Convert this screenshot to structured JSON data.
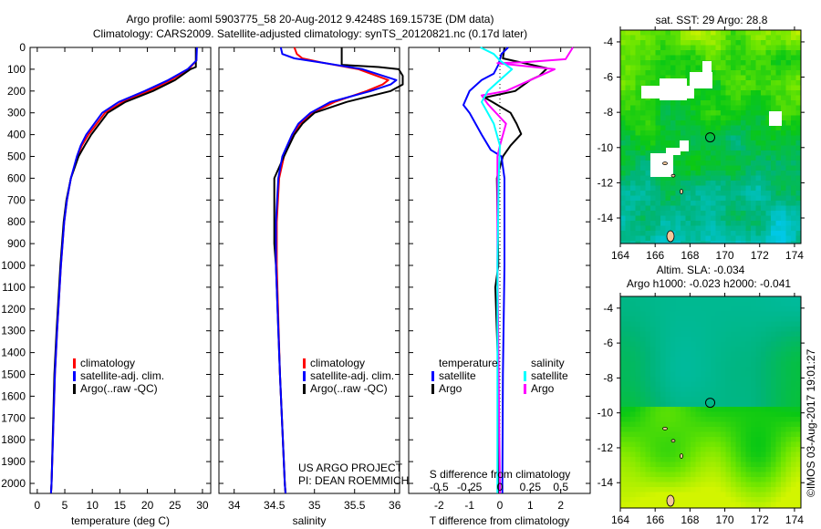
{
  "title_line1": "Argo profile: aoml 5903775_58 20-Aug-2012 9.4248S 169.1573E (DM data)",
  "title_line2": "Climatology: CARS2009. Satellite-adjusted climatology: synTS_20120821.nc (0.17d later)",
  "credit": "©IMOS 03-Aug-2017 19:01:27",
  "project_line1": "US ARGO PROJECT",
  "project_line2": "PI: DEAN ROEMMICH",
  "colors": {
    "climatology": "#ff0000",
    "satellite": "#0000ff",
    "argo": "#000000",
    "sal_satellite": "#00ffff",
    "sal_argo": "#ff00ff"
  },
  "chart_data": [
    {
      "type": "line",
      "title": "",
      "xlabel": "temperature (deg C)",
      "ylabel": "",
      "xlim": [
        -1.3,
        31.5
      ],
      "ylim": [
        2045,
        0
      ],
      "xticks": [
        "0",
        "5",
        "10",
        "15",
        "20",
        "25",
        "30"
      ],
      "yticks": [
        "0",
        "100",
        "200",
        "300",
        "400",
        "500",
        "600",
        "700",
        "800",
        "900",
        "1000",
        "1100",
        "1200",
        "1300",
        "1400",
        "1500",
        "1600",
        "1700",
        "1800",
        "1900",
        "2000"
      ],
      "legend": [
        "climatology",
        "satellite-adj. clim.",
        "Argo(..raw -QC)"
      ],
      "series": [
        {
          "name": "climatology",
          "color": "#ff0000",
          "depth": [
            0,
            60,
            100,
            150,
            200,
            250,
            300,
            400,
            450,
            500,
            600,
            700,
            800,
            1000,
            1300,
            1500,
            2000,
            2045
          ],
          "values": [
            28.9,
            28.9,
            27.5,
            24.3,
            20.2,
            15.5,
            12.3,
            9.3,
            8.1,
            7.3,
            6.1,
            5.4,
            4.9,
            4.3,
            3.6,
            3.2,
            2.6,
            2.5
          ]
        },
        {
          "name": "satellite-adj. clim.",
          "color": "#0000ff",
          "depth": [
            0,
            60,
            100,
            150,
            200,
            250,
            300,
            400,
            450,
            500,
            600,
            700,
            800,
            1000,
            1300,
            1500,
            2000,
            2045
          ],
          "values": [
            29.0,
            28.9,
            27.3,
            23.8,
            19.5,
            14.8,
            11.8,
            8.9,
            7.9,
            7.2,
            6.1,
            5.4,
            4.9,
            4.3,
            3.6,
            3.2,
            2.6,
            2.5
          ]
        },
        {
          "name": "Argo(..raw -QC)",
          "color": "#000000",
          "depth": [
            0,
            90,
            100,
            150,
            200,
            250,
            300,
            400,
            450,
            500,
            600,
            700,
            800,
            1000,
            1300,
            1500,
            2000,
            2045
          ],
          "values": [
            28.8,
            28.8,
            27.8,
            25.0,
            21.0,
            16.0,
            12.8,
            9.8,
            8.6,
            7.5,
            6.1,
            5.3,
            4.8,
            4.2,
            3.5,
            3.1,
            2.6,
            2.5
          ]
        }
      ]
    },
    {
      "type": "line",
      "xlabel": "salinity",
      "xlim": [
        33.81,
        36.06
      ],
      "ylim": [
        2045,
        0
      ],
      "xticks": [
        "34",
        "34.5",
        "35",
        "35.5",
        "36"
      ],
      "legend": [
        "climatology",
        "satellite-adj. clim.",
        "Argo(..raw -QC)"
      ],
      "series": [
        {
          "name": "climatology",
          "color": "#ff0000",
          "depth": [
            0,
            30,
            50,
            70,
            100,
            150,
            170,
            200,
            250,
            300,
            350,
            400,
            500,
            600,
            800,
            1000,
            1500,
            2000,
            2045
          ],
          "values": [
            34.75,
            34.78,
            34.85,
            35.1,
            35.55,
            35.92,
            35.85,
            35.65,
            35.25,
            34.97,
            34.82,
            34.73,
            34.62,
            34.56,
            34.53,
            34.53,
            34.57,
            34.63,
            34.64
          ]
        },
        {
          "name": "satellite-adj. clim.",
          "color": "#0000ff",
          "depth": [
            0,
            30,
            50,
            70,
            100,
            150,
            170,
            200,
            250,
            300,
            350,
            400,
            500,
            600,
            800,
            1000,
            1500,
            2000,
            2045
          ],
          "values": [
            34.58,
            34.6,
            34.75,
            35.1,
            35.6,
            36.02,
            35.95,
            35.7,
            35.2,
            34.95,
            34.8,
            34.72,
            34.6,
            34.55,
            34.52,
            34.52,
            34.57,
            34.63,
            34.64
          ]
        },
        {
          "name": "Argo(..raw -QC)",
          "color": "#000000",
          "depth": [
            0,
            80,
            90,
            100,
            130,
            170,
            200,
            250,
            300,
            350,
            400,
            500,
            600,
            900,
            1000,
            1500,
            2000,
            2045
          ],
          "values": [
            35.34,
            35.34,
            35.8,
            36.05,
            36.1,
            36.1,
            35.95,
            35.4,
            35.0,
            34.85,
            34.75,
            34.62,
            34.5,
            34.5,
            34.52,
            34.57,
            34.63,
            34.64
          ]
        }
      ]
    },
    {
      "type": "line",
      "xlabel": "T difference from climatology",
      "xlabel2": "S difference from climatology",
      "xlim": [
        -3,
        2.97
      ],
      "xlim_s": [
        -0.75,
        0.7425
      ],
      "ylim": [
        2045,
        0
      ],
      "xticks": [
        "-2",
        "-1",
        "0",
        "1",
        "2"
      ],
      "xticks_s": [
        "-0.5",
        "-0.25",
        "0",
        "0.25",
        "0.5"
      ],
      "legend_temperature": {
        "title": "temperature",
        "items": [
          "satellite",
          "Argo"
        ]
      },
      "legend_salinity": {
        "title": "salinity",
        "items": [
          "satellite",
          "Argo"
        ]
      },
      "series": [
        {
          "name": "temperature satellite",
          "color": "#0000ff",
          "scale": "T",
          "depth": [
            0,
            30,
            80,
            120,
            150,
            200,
            264,
            300,
            400,
            470,
            500,
            600,
            1000,
            1500,
            2000,
            2045
          ],
          "values": [
            0.27,
            0.05,
            -0.05,
            -0.2,
            -0.6,
            -1.0,
            -1.2,
            -1.0,
            -0.6,
            -0.3,
            0.05,
            0.15,
            0.15,
            0.1,
            0.08,
            0.08
          ]
        },
        {
          "name": "temperature Argo",
          "color": "#000000",
          "scale": "T",
          "depth": [
            0,
            50,
            96,
            130,
            150,
            200,
            230,
            250,
            300,
            350,
            397,
            450,
            500,
            600,
            1000,
            1100,
            1500,
            2000,
            2045
          ],
          "values": [
            0.15,
            0.1,
            1.55,
            1.3,
            1.0,
            0.5,
            -0.5,
            -0.25,
            0.35,
            0.55,
            0.7,
            0.35,
            0.1,
            -0.1,
            -0.05,
            -0.15,
            -0.05,
            -0.05,
            -0.05
          ]
        },
        {
          "name": "salinity satellite",
          "color": "#00ffff",
          "scale": "S",
          "depth": [
            0,
            30,
            60,
            100,
            150,
            200,
            250,
            350,
            450,
            600,
            1000,
            2000,
            2045
          ],
          "values": [
            -0.16,
            -0.05,
            0.0,
            0.1,
            0.0,
            -0.1,
            -0.15,
            -0.05,
            0.0,
            -0.01,
            -0.02,
            -0.02,
            -0.02
          ]
        },
        {
          "name": "salinity Argo",
          "color": "#ff00ff",
          "scale": "S",
          "depth": [
            0,
            54,
            68,
            72,
            100,
            150,
            200,
            220,
            260,
            350,
            450,
            500,
            1000,
            2000,
            2045
          ],
          "values": [
            0.6,
            0.54,
            0.2,
            -0.02,
            0.45,
            0.25,
            0.05,
            -0.15,
            -0.1,
            0.05,
            0.0,
            -0.02,
            -0.02,
            0.0,
            0.0
          ]
        }
      ]
    },
    {
      "type": "heatmap",
      "title": "sat. SST: 29 Argo: 28.8",
      "xlim": [
        164,
        174.37
      ],
      "ylim": [
        -15.45,
        -3.33
      ],
      "xticks": [
        "164",
        "166",
        "168",
        "170",
        "172",
        "174"
      ],
      "yticks": [
        "-4",
        "-6",
        "-8",
        "-10",
        "-12",
        "-14"
      ],
      "marker": {
        "lon": 169.16,
        "lat": -9.42
      }
    },
    {
      "type": "heatmap",
      "title": "Altim. SLA: -0.034",
      "subtitle": "Argo h1000: -0.023 h2000: -0.041",
      "xlim": [
        164,
        174.37
      ],
      "ylim": [
        -15.45,
        -3.33
      ],
      "xticks": [
        "164",
        "166",
        "168",
        "170",
        "172",
        "174"
      ],
      "yticks": [
        "-4",
        "-6",
        "-8",
        "-10",
        "-12",
        "-14"
      ],
      "marker": {
        "lon": 169.16,
        "lat": -9.42
      }
    }
  ]
}
